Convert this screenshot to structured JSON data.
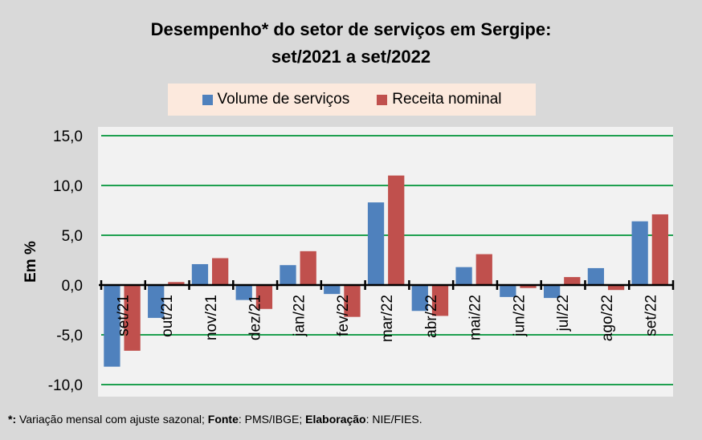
{
  "chart_data": {
    "type": "bar",
    "title": "Desempenho* do setor de serviços em Sergipe:",
    "subtitle": "set/2021 a set/2022",
    "xlabel": "",
    "ylabel": "Em %",
    "ylim": [
      -10,
      15
    ],
    "yticks": [
      -10,
      -5,
      0,
      5,
      10,
      15
    ],
    "ytick_labels": [
      "-10,0",
      "-5,0",
      "0,0",
      "5,0",
      "10,0",
      "15,0"
    ],
    "grid": true,
    "legend_position": "top-center",
    "categories": [
      "set/21",
      "out/21",
      "nov/21",
      "dez/21",
      "jan/22",
      "fev/22",
      "mar/22",
      "abr/22",
      "mai/22",
      "jun/22",
      "jul/22",
      "ago/22",
      "set/22"
    ],
    "series": [
      {
        "name": "Volume de serviços",
        "color": "#4f81bd",
        "values": [
          -8.2,
          -3.3,
          2.1,
          -1.5,
          2.0,
          -0.9,
          8.3,
          -2.6,
          1.8,
          -1.2,
          -1.3,
          1.7,
          6.4
        ]
      },
      {
        "name": "Receita nominal",
        "color": "#c0504d",
        "values": [
          -6.6,
          0.3,
          2.7,
          -2.4,
          3.4,
          -3.2,
          11.0,
          -3.1,
          3.1,
          -0.3,
          0.8,
          -0.5,
          7.1
        ]
      }
    ],
    "colors": {
      "gridline": "#1fa050",
      "plot_bg": "#f2f2f2",
      "page_bg": "#d9d9d9",
      "legend_bg": "#fce9dd"
    }
  },
  "footnote": {
    "star": "*:",
    "text1": " Variação mensal com ajuste sazonal; ",
    "fonte_label": "Fonte",
    "fonte_text": ": PMS/IBGE; ",
    "elab_label": "Elaboração",
    "elab_text": ": NIE/FIES."
  }
}
